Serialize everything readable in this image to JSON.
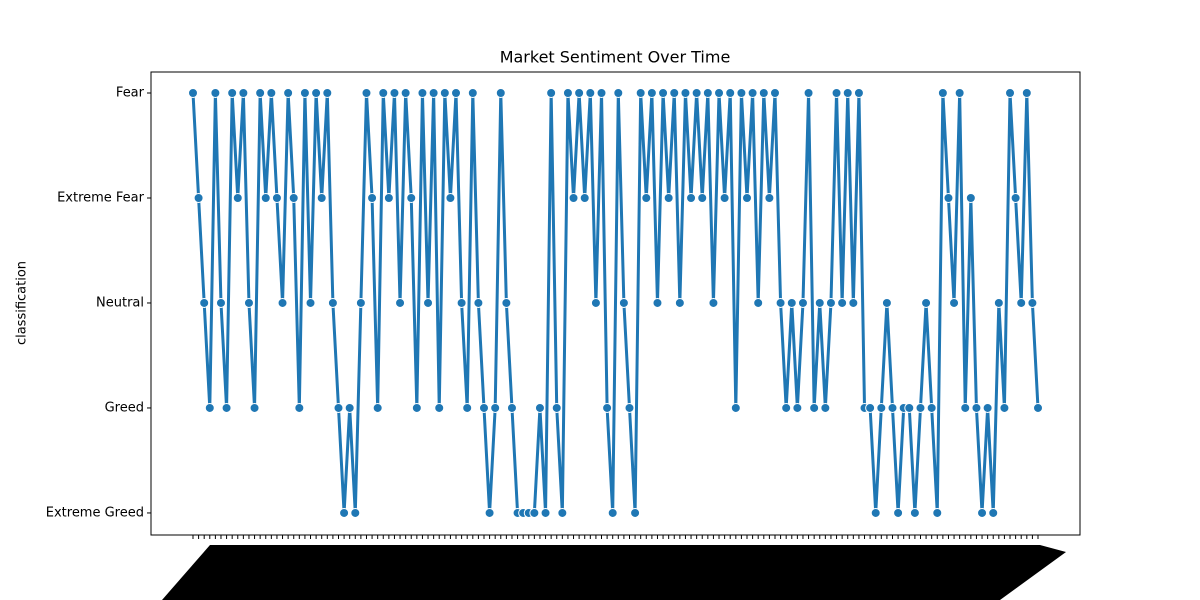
{
  "chart_data": {
    "type": "line",
    "title": "Market Sentiment Over Time",
    "y_label": "classification",
    "color": "#1f77b4",
    "ylim": [
      4.21,
      -0.2
    ],
    "yticks": [
      {
        "value": 0,
        "label": "Fear"
      },
      {
        "value": 1,
        "label": "Extreme Fear"
      },
      {
        "value": 2,
        "label": "Neutral"
      },
      {
        "value": 3,
        "label": "Greed"
      },
      {
        "value": 4,
        "label": "Extreme Greed"
      }
    ],
    "categories": [
      null,
      null,
      null,
      null,
      null,
      null,
      null,
      null,
      null,
      null,
      null,
      null,
      null,
      null,
      null,
      null,
      null,
      null,
      null,
      null,
      null,
      null,
      null,
      null,
      null,
      null,
      null,
      null,
      null,
      null,
      null,
      null,
      null,
      null,
      null,
      null,
      null,
      null,
      null,
      null,
      null,
      null,
      null,
      null,
      null,
      null,
      null,
      null,
      null,
      null,
      null,
      null,
      null,
      null,
      null,
      null,
      null,
      null,
      null,
      null,
      null,
      null,
      null,
      null,
      null,
      null,
      null,
      null,
      null,
      null,
      null,
      null,
      null,
      null,
      null,
      null,
      null,
      null,
      null,
      null,
      null,
      null,
      null,
      null,
      null,
      null,
      null,
      null,
      null,
      null,
      null,
      null,
      null,
      null,
      null,
      null,
      null,
      null,
      null,
      null,
      null,
      null,
      null,
      null,
      null,
      null,
      null,
      null,
      null,
      null,
      null,
      null,
      null,
      null,
      null,
      null,
      null,
      null,
      null,
      null,
      null,
      null,
      null,
      null,
      null,
      null,
      null,
      null,
      null,
      null,
      null,
      null,
      null,
      null,
      null,
      null,
      null,
      null,
      null,
      null,
      null,
      null,
      null,
      null,
      null,
      null,
      null,
      null,
      null,
      null,
      null,
      null
    ],
    "values": [
      0,
      1,
      2,
      3,
      0,
      2,
      3,
      0,
      1,
      0,
      2,
      3,
      0,
      1,
      0,
      1,
      2,
      0,
      1,
      3,
      0,
      2,
      0,
      1,
      0,
      2,
      3,
      4,
      3,
      4,
      2,
      0,
      1,
      3,
      0,
      1,
      0,
      2,
      0,
      1,
      3,
      0,
      2,
      0,
      3,
      0,
      1,
      0,
      2,
      3,
      0,
      2,
      3,
      4,
      3,
      0,
      2,
      3,
      4,
      4,
      4,
      4,
      3,
      4,
      0,
      3,
      4,
      0,
      1,
      0,
      1,
      0,
      2,
      0,
      3,
      4,
      0,
      2,
      3,
      4,
      0,
      1,
      0,
      2,
      0,
      1,
      0,
      2,
      0,
      1,
      0,
      1,
      0,
      2,
      0,
      1,
      0,
      3,
      0,
      1,
      0,
      2,
      0,
      1,
      0,
      2,
      3,
      2,
      3,
      2,
      0,
      3,
      2,
      3,
      2,
      0,
      2,
      0,
      2,
      0,
      3,
      3,
      4,
      3,
      2,
      3,
      4,
      3,
      3,
      4,
      3,
      2,
      3,
      4,
      0,
      1,
      2,
      0,
      3,
      1,
      3,
      4,
      3,
      4,
      2,
      3,
      0,
      1,
      2,
      0,
      2,
      3
    ]
  }
}
